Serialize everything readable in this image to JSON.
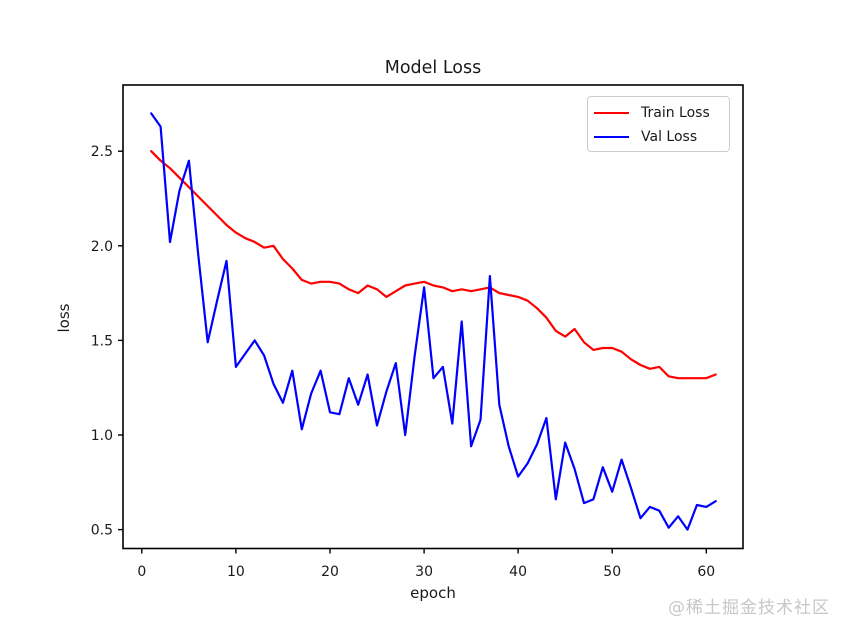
{
  "watermark": {
    "text": "@稀土掘金技术社区"
  },
  "chart_data": {
    "type": "line",
    "title": "Model Loss",
    "xlabel": "epoch",
    "ylabel": "loss",
    "grid": false,
    "legend_position": "upper right",
    "xlim": [
      -2,
      63.9
    ],
    "ylim": [
      0.4,
      2.85
    ],
    "xticks": [
      0,
      10,
      20,
      30,
      40,
      50,
      60
    ],
    "yticks": [
      0.5,
      1.0,
      1.5,
      2.0,
      2.5
    ],
    "x": [
      1,
      2,
      3,
      4,
      5,
      6,
      7,
      8,
      9,
      10,
      11,
      12,
      13,
      14,
      15,
      16,
      17,
      18,
      19,
      20,
      21,
      22,
      23,
      24,
      25,
      26,
      27,
      28,
      29,
      30,
      31,
      32,
      33,
      34,
      35,
      36,
      37,
      38,
      39,
      40,
      41,
      42,
      43,
      44,
      45,
      46,
      47,
      48,
      49,
      50,
      51,
      52,
      53,
      54,
      55,
      56,
      57,
      58,
      59,
      60,
      61
    ],
    "series": [
      {
        "name": "Train Loss",
        "color": "#ff0000",
        "values": [
          2.5,
          2.45,
          2.41,
          2.36,
          2.31,
          2.26,
          2.21,
          2.16,
          2.11,
          2.07,
          2.04,
          2.02,
          1.99,
          2.0,
          1.93,
          1.88,
          1.82,
          1.8,
          1.81,
          1.81,
          1.8,
          1.77,
          1.75,
          1.79,
          1.77,
          1.73,
          1.76,
          1.79,
          1.8,
          1.81,
          1.79,
          1.78,
          1.76,
          1.77,
          1.76,
          1.77,
          1.78,
          1.75,
          1.74,
          1.73,
          1.71,
          1.67,
          1.62,
          1.55,
          1.52,
          1.56,
          1.49,
          1.45,
          1.46,
          1.46,
          1.44,
          1.4,
          1.37,
          1.35,
          1.36,
          1.31,
          1.3,
          1.3,
          1.3,
          1.3,
          1.32
        ]
      },
      {
        "name": "Val Loss",
        "color": "#0000ff",
        "values": [
          2.7,
          2.63,
          2.02,
          2.29,
          2.45,
          1.95,
          1.49,
          1.71,
          1.92,
          1.36,
          1.43,
          1.5,
          1.42,
          1.27,
          1.17,
          1.34,
          1.03,
          1.22,
          1.34,
          1.12,
          1.11,
          1.3,
          1.16,
          1.32,
          1.05,
          1.23,
          1.38,
          1.0,
          1.42,
          1.78,
          1.3,
          1.36,
          1.06,
          1.6,
          0.94,
          1.08,
          1.84,
          1.16,
          0.94,
          0.78,
          0.85,
          0.95,
          1.09,
          0.66,
          0.96,
          0.82,
          0.64,
          0.66,
          0.83,
          0.7,
          0.87,
          0.72,
          0.56,
          0.62,
          0.6,
          0.51,
          0.57,
          0.5,
          0.63,
          0.62,
          0.65
        ]
      }
    ]
  }
}
